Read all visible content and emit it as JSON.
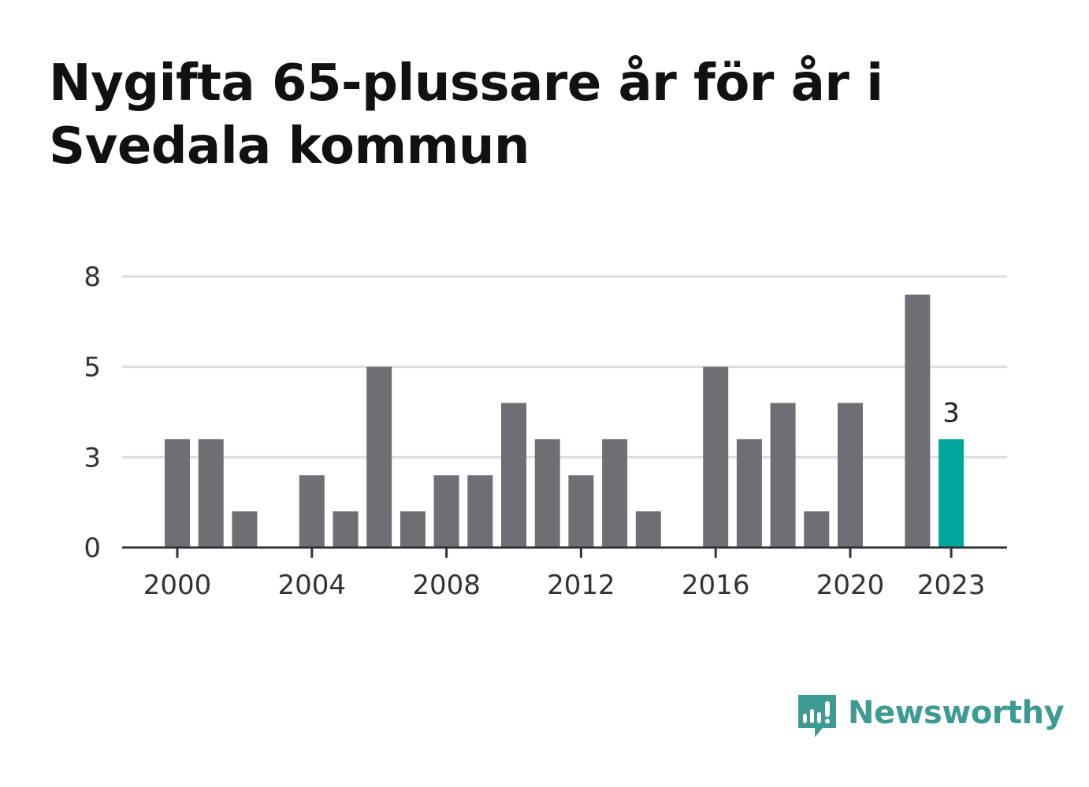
{
  "chart_data": {
    "type": "bar",
    "title": "Nygifta 65-plussare år för år i Svedala kommun",
    "xlabel": "",
    "ylabel": "",
    "categories": [
      "2000",
      "2001",
      "2002",
      "2003",
      "2004",
      "2005",
      "2006",
      "2007",
      "2008",
      "2009",
      "2010",
      "2011",
      "2012",
      "2013",
      "2014",
      "2015",
      "2016",
      "2017",
      "2018",
      "2019",
      "2020",
      "2021",
      "2022",
      "2023"
    ],
    "values": [
      3,
      3,
      1,
      0,
      2,
      1,
      5,
      1,
      2,
      2,
      4,
      3,
      2,
      3,
      1,
      0,
      5,
      3,
      4,
      1,
      4,
      0,
      7,
      3
    ],
    "ylim": [
      0,
      7.5
    ],
    "y_ticks": [
      0,
      2.5,
      5,
      7.5
    ],
    "y_tick_labels": [
      "0",
      "3",
      "5",
      "8"
    ],
    "x_tick_labels": [
      "2000",
      "2004",
      "2008",
      "2012",
      "2016",
      "2020",
      "2023"
    ],
    "highlight_category": "2023",
    "highlight_label": "3",
    "grid": true,
    "legend": "none",
    "colors": {
      "bar": "#6f6e74",
      "highlight": "#00a69a",
      "grid": "#dddddd",
      "axis": "#333333"
    }
  },
  "brand": {
    "name": "Newsworthy",
    "icon": "newsworthy-logo-icon",
    "color": "#3e9b93"
  }
}
